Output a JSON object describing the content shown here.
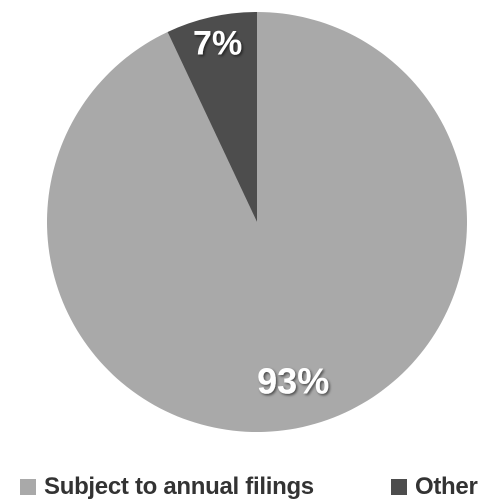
{
  "chart_data": {
    "type": "pie",
    "slices": [
      {
        "label": "Subject to annual filings",
        "value": 93,
        "display": "93%",
        "color": "#a9a9a9"
      },
      {
        "label": "Other",
        "value": 7,
        "display": "7%",
        "color": "#4d4d4d"
      }
    ],
    "start_angle_deg": 0,
    "direction": "counterclockwise",
    "legend_position": "bottom"
  }
}
